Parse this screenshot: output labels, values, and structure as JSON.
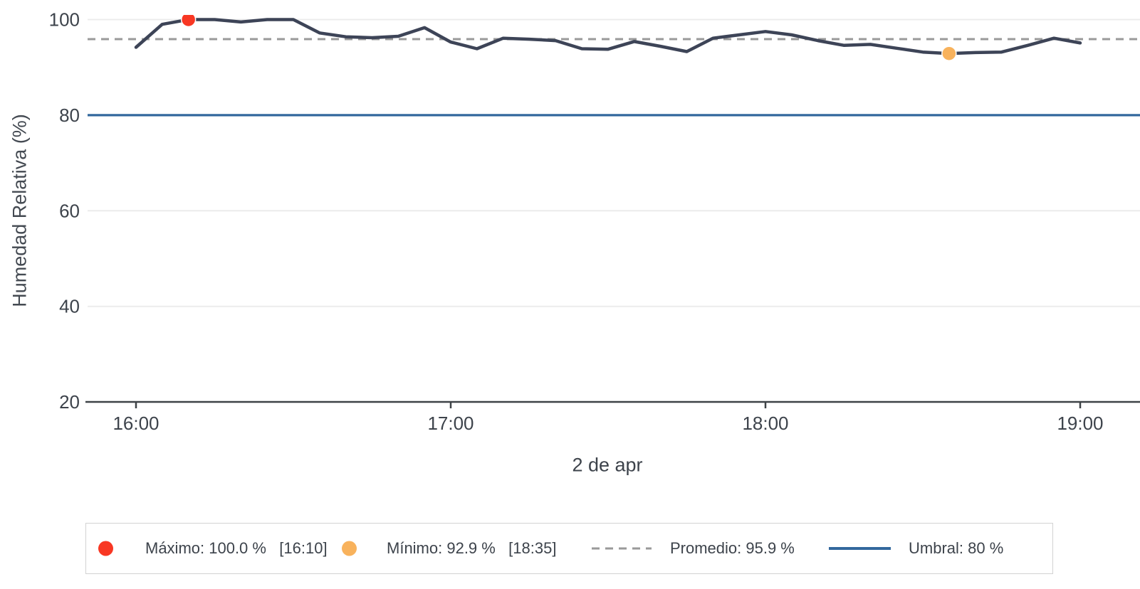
{
  "figure": {
    "x_axis_title": "2 de apr",
    "y_axis_title": "Humedad Relativa (%)"
  },
  "chart_data": {
    "type": "line",
    "title": "",
    "xlabel": "2 de apr",
    "ylabel": "Humedad Relativa (%)",
    "x": [
      "16:00",
      "16:05",
      "16:10",
      "16:15",
      "16:20",
      "16:25",
      "16:30",
      "16:35",
      "16:40",
      "16:45",
      "16:50",
      "16:55",
      "17:00",
      "17:05",
      "17:10",
      "17:15",
      "17:20",
      "17:25",
      "17:30",
      "17:35",
      "17:40",
      "17:45",
      "17:50",
      "17:55",
      "18:00",
      "18:05",
      "18:10",
      "18:15",
      "18:20",
      "18:25",
      "18:30",
      "18:35",
      "18:40",
      "18:45",
      "18:50",
      "18:55",
      "19:00"
    ],
    "series": [
      {
        "name": "Humedad Relativa",
        "color": "#3d4457",
        "values": [
          94.2,
          99.0,
          100.0,
          100.0,
          99.5,
          100.0,
          100.0,
          97.2,
          96.4,
          96.2,
          96.5,
          98.3,
          95.3,
          93.9,
          96.1,
          95.9,
          95.6,
          93.9,
          93.8,
          95.4,
          94.4,
          93.3,
          96.1,
          96.8,
          97.5,
          96.8,
          95.6,
          94.6,
          94.8,
          94.0,
          93.2,
          92.9,
          93.1,
          93.2,
          94.6,
          96.1,
          95.1
        ]
      }
    ],
    "xticks": [
      "16:00",
      "17:00",
      "18:00",
      "19:00"
    ],
    "yticks": [
      100,
      80,
      60,
      40,
      20
    ],
    "ylim": [
      20,
      101
    ],
    "grid": true,
    "legend_position": "bottom",
    "reference_lines": [
      {
        "name": "Promedio",
        "value": 95.9,
        "style": "dashed",
        "color": "#9a9a9a"
      },
      {
        "name": "Umbral",
        "value": 80,
        "style": "solid",
        "color": "#33689d"
      }
    ],
    "markers": [
      {
        "name": "Máximo",
        "time": "16:10",
        "value": 100.0,
        "color": "#f83723"
      },
      {
        "name": "Mínimo",
        "time": "18:35",
        "value": 92.9,
        "color": "#f8b25c"
      }
    ]
  },
  "legend": {
    "items": [
      {
        "type": "dot",
        "color": "#f83723",
        "label": "Máximo: 100.0 %   [16:10]"
      },
      {
        "type": "dot",
        "color": "#f8b25c",
        "label": "Mínimo: 92.9 %   [18:35]"
      },
      {
        "type": "dash",
        "color": "#9a9a9a",
        "label": "Promedio: 95.9 %"
      },
      {
        "type": "line",
        "color": "#33689d",
        "label": "Umbral: 80 %"
      }
    ]
  },
  "colors": {
    "grid": "#ececec",
    "axis": "#3e4347",
    "tick_text": "#3d434b",
    "background": "#ffffff",
    "legend_border": "#d2d2d2"
  }
}
